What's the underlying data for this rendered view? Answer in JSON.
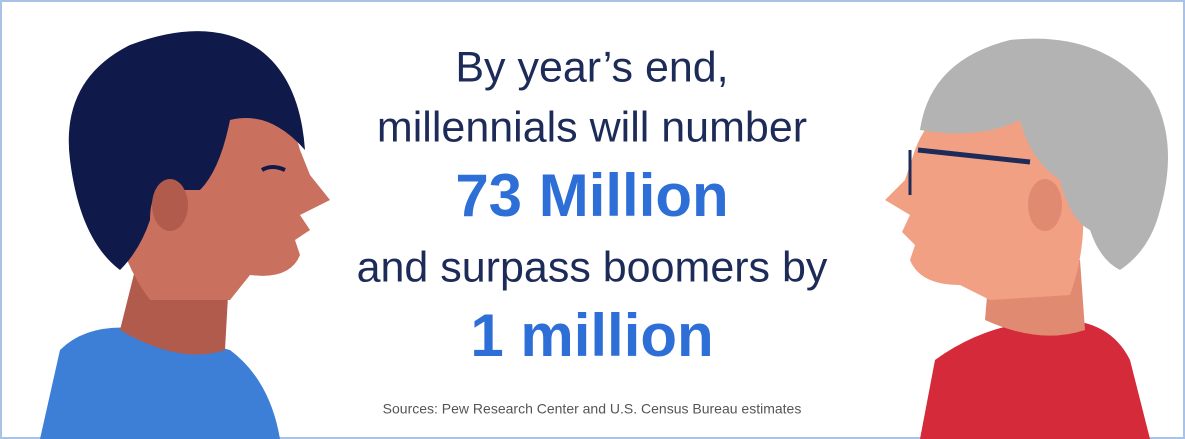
{
  "headline": {
    "lines": [
      "By year’s end,",
      "millennials will number"
    ],
    "figure_1": "73 Million",
    "middle": "and surpass boomers by",
    "figure_2": "1 million"
  },
  "source": "Sources: Pew Research Center and U.S. Census Bureau estimates"
}
